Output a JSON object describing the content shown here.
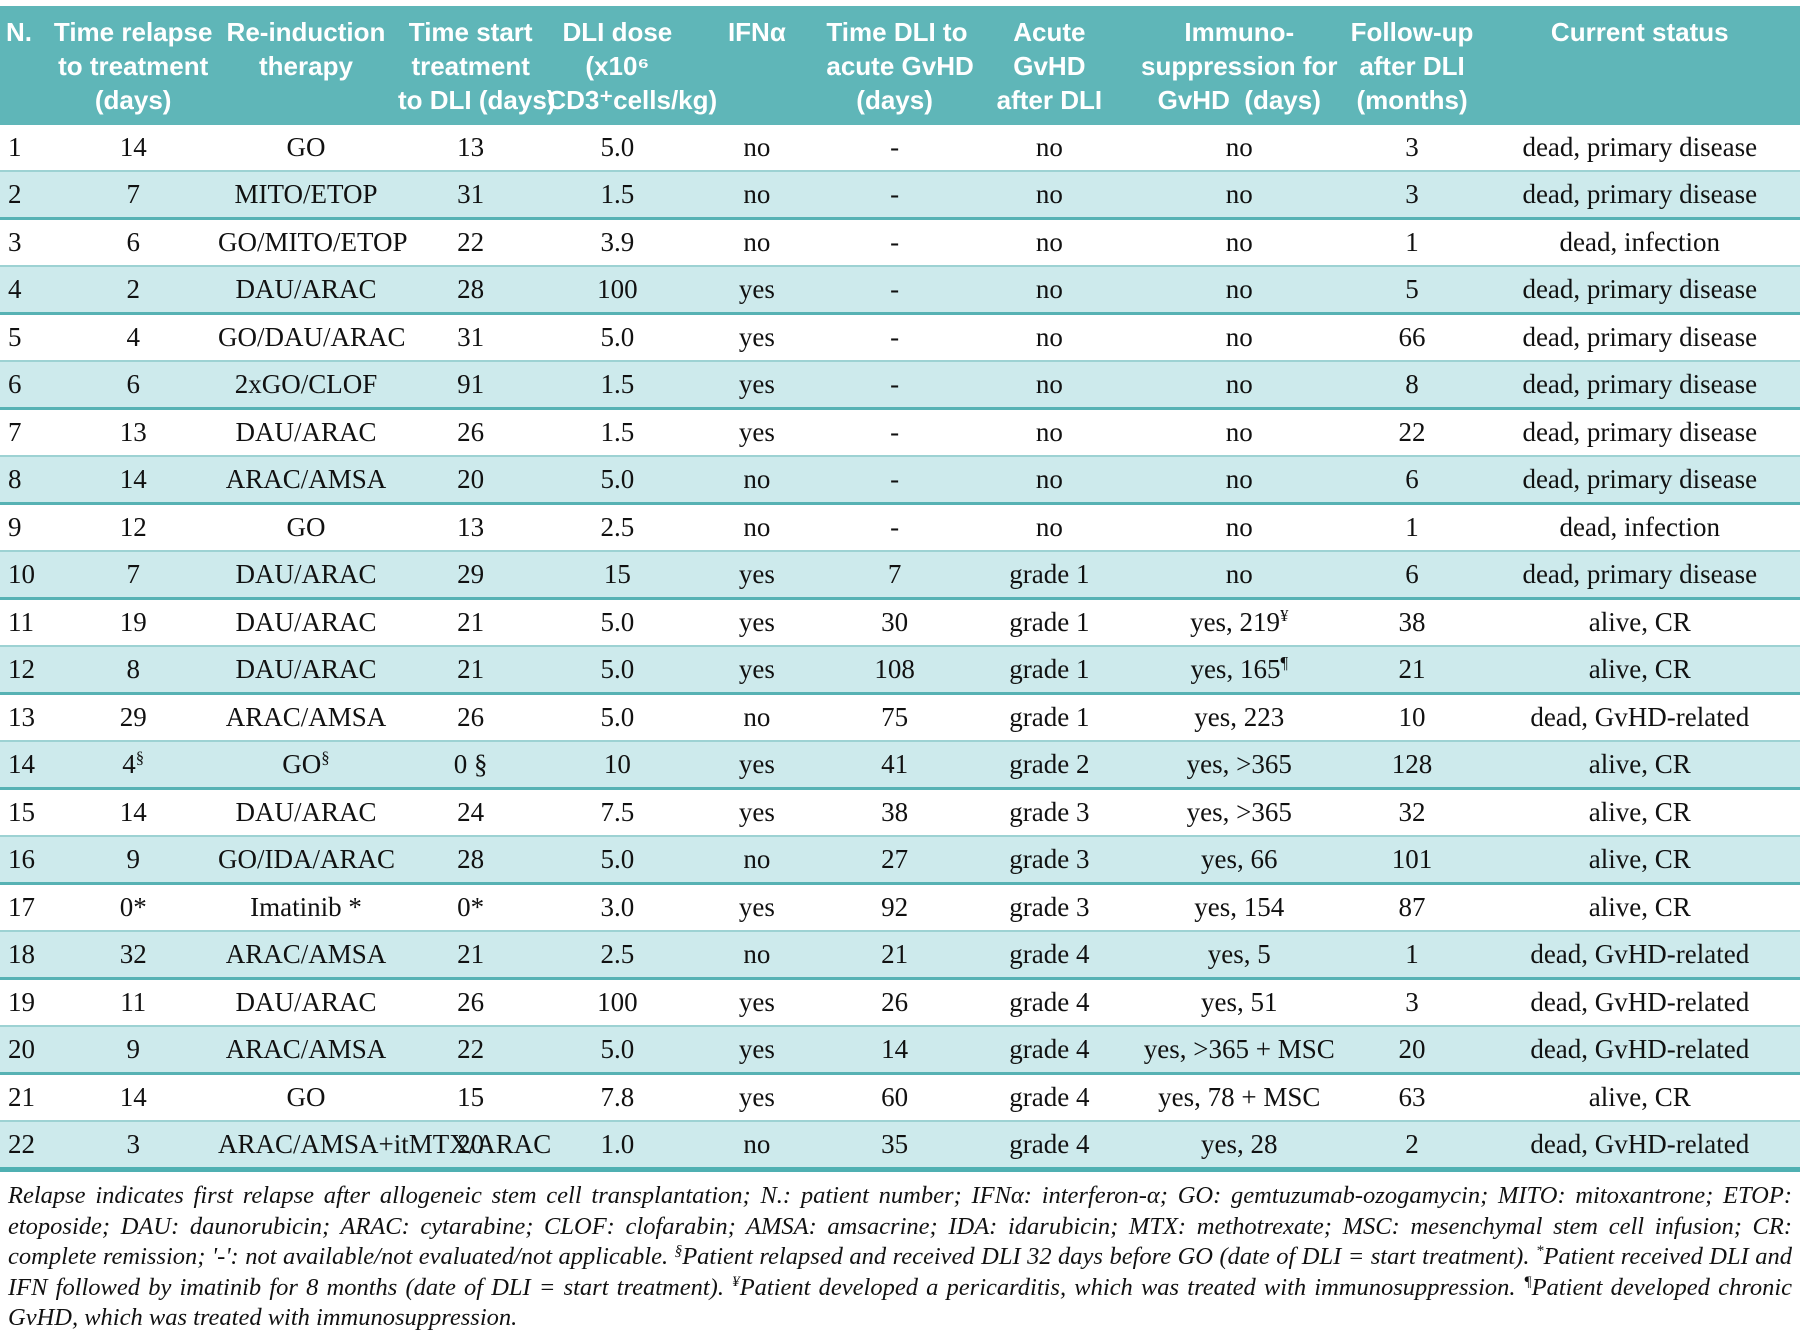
{
  "colors": {
    "header_bg": "#5fb6b8",
    "row_shade_bg": "#cdeaec",
    "row_plain_bg": "#ffffff",
    "separator": "#57b2b4",
    "header_text": "#ffffff",
    "body_text": "#111111"
  },
  "table": {
    "columns": [
      {
        "label": "N."
      },
      {
        "label": "Time relapse\nto treatment\n(days)"
      },
      {
        "label": "Re-induction\ntherapy"
      },
      {
        "label": "Time start\ntreatment\nto DLI (days)"
      },
      {
        "label": "DLI dose\n(x10⁶\nCD3⁺cells/kg)"
      },
      {
        "label": "IFNα"
      },
      {
        "label": "Time DLI to\nacute GvHD\n(days)"
      },
      {
        "label": "Acute\nGvHD\nafter DLI"
      },
      {
        "label": "Immuno-\nsuppression for\nGvHD  (days)"
      },
      {
        "label": "Follow-up\nafter DLI\n(months)"
      },
      {
        "label": "Current status"
      }
    ],
    "rows": [
      [
        "1",
        "14",
        "GO",
        "13",
        "5.0",
        "no",
        "-",
        "no",
        "no",
        "3",
        "dead, primary disease"
      ],
      [
        "2",
        "7",
        "MITO/ETOP",
        "31",
        "1.5",
        "no",
        "-",
        "no",
        "no",
        "3",
        "dead, primary disease"
      ],
      [
        "3",
        "6",
        "GO/MITO/ETOP",
        "22",
        "3.9",
        "no",
        "-",
        "no",
        "no",
        "1",
        "dead, infection"
      ],
      [
        "4",
        "2",
        "DAU/ARAC",
        "28",
        "100",
        "yes",
        "-",
        "no",
        "no",
        "5",
        "dead, primary disease"
      ],
      [
        "5",
        "4",
        "GO/DAU/ARAC",
        "31",
        "5.0",
        "yes",
        "-",
        "no",
        "no",
        "66",
        "dead, primary disease"
      ],
      [
        "6",
        "6",
        "2xGO/CLOF",
        "91",
        "1.5",
        "yes",
        "-",
        "no",
        "no",
        "8",
        "dead, primary disease"
      ],
      [
        "7",
        "13",
        "DAU/ARAC",
        "26",
        "1.5",
        "yes",
        "-",
        "no",
        "no",
        "22",
        "dead, primary disease"
      ],
      [
        "8",
        "14",
        "ARAC/AMSA",
        "20",
        "5.0",
        "no",
        "-",
        "no",
        "no",
        "6",
        "dead, primary disease"
      ],
      [
        "9",
        "12",
        "GO",
        "13",
        "2.5",
        "no",
        "-",
        "no",
        "no",
        "1",
        "dead, infection"
      ],
      [
        "10",
        "7",
        "DAU/ARAC",
        "29",
        "15",
        "yes",
        "7",
        "grade 1",
        "no",
        "6",
        "dead, primary disease"
      ],
      [
        "11",
        "19",
        "DAU/ARAC",
        "21",
        "5.0",
        "yes",
        "30",
        "grade 1",
        "yes, 219^¥",
        "38",
        "alive, CR"
      ],
      [
        "12",
        "8",
        "DAU/ARAC",
        "21",
        "5.0",
        "yes",
        "108",
        "grade 1",
        "yes, 165^¶",
        "21",
        "alive, CR"
      ],
      [
        "13",
        "29",
        "ARAC/AMSA",
        "26",
        "5.0",
        "no",
        "75",
        "grade 1",
        "yes, 223",
        "10",
        "dead, GvHD-related"
      ],
      [
        "14",
        "4^§",
        "GO^§",
        "0 §",
        "10",
        "yes",
        "41",
        "grade 2",
        "yes, >365",
        "128",
        "alive, CR"
      ],
      [
        "15",
        "14",
        "DAU/ARAC",
        "24",
        "7.5",
        "yes",
        "38",
        "grade 3",
        "yes, >365",
        "32",
        "alive, CR"
      ],
      [
        "16",
        "9",
        "GO/IDA/ARAC",
        "28",
        "5.0",
        "no",
        "27",
        "grade 3",
        "yes, 66",
        "101",
        "alive, CR"
      ],
      [
        "17",
        "0*",
        "Imatinib *",
        "0*",
        "3.0",
        "yes",
        "92",
        "grade 3",
        "yes, 154",
        "87",
        "alive, CR"
      ],
      [
        "18",
        "32",
        "ARAC/AMSA",
        "21",
        "2.5",
        "no",
        "21",
        "grade 4",
        "yes, 5",
        "1",
        "dead, GvHD-related"
      ],
      [
        "19",
        "11",
        "DAU/ARAC",
        "26",
        "100",
        "yes",
        "26",
        "grade 4",
        "yes, 51",
        "3",
        "dead, GvHD-related"
      ],
      [
        "20",
        "9",
        "ARAC/AMSA",
        "22",
        "5.0",
        "yes",
        "14",
        "grade 4",
        "yes, >365 + MSC",
        "20",
        "dead, GvHD-related"
      ],
      [
        "21",
        "14",
        "GO",
        "15",
        "7.8",
        "yes",
        "60",
        "grade 4",
        "yes, 78 + MSC",
        "63",
        "alive, CR"
      ],
      [
        "22",
        "3",
        "ARAC/AMSA+itMTX/ARAC",
        "20",
        "1.0",
        "no",
        "35",
        "grade 4",
        "yes, 28",
        "2",
        "dead, GvHD-related"
      ]
    ]
  },
  "footnote": {
    "text": "Relapse indicates first relapse after allogeneic stem cell transplantation; N.: patient number; IFNα: interferon-α; GO: gemtuzumab-ozogamycin; MITO: mitoxantrone; ETOP: etoposide; DAU: daunorubicin; ARAC: cytarabine; CLOF: clofarabin; AMSA: amsacrine; IDA: idarubicin; MTX: methotrexate; MSC: mesenchymal stem cell infusion; CR: complete remission; '-': not available/not evaluated/not applicable. ^§Patient relapsed and received DLI 32 days before GO (date of DLI = start treatment). ^*Patient received DLI and IFN followed by imatinib for 8 months (date of DLI = start treatment). ^¥Patient developed a pericarditis, which was treated with immunosuppression. ^¶Patient developed chronic GvHD, which was treated with immunosuppression."
  }
}
